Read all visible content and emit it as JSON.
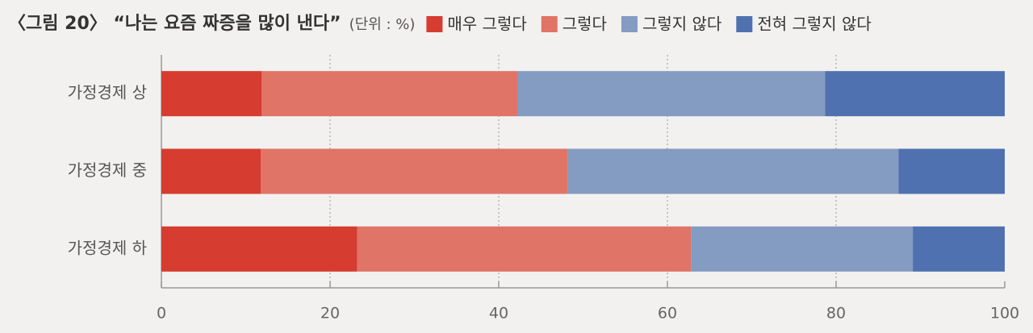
{
  "chart_data": {
    "type": "stacked-barh",
    "title": "〈그림 20〉 “나는 요즘 짜증을 많이 낸다”",
    "unit": "(단위 : %)",
    "categories": [
      "가정경제 상",
      "가정경제 중",
      "가정경제 하"
    ],
    "series": [
      {
        "name": "매우 그렇다",
        "color": "#d63c2f",
        "values": [
          11.9,
          11.8,
          23.2
        ]
      },
      {
        "name": "그렇다",
        "color": "#e07467",
        "values": [
          30.3,
          36.4,
          39.6
        ]
      },
      {
        "name": "그렇지 않다",
        "color": "#849bc2",
        "values": [
          36.5,
          39.2,
          26.3
        ]
      },
      {
        "name": "전혀 그렇지 않다",
        "color": "#4f71b0",
        "values": [
          21.3,
          12.6,
          10.9
        ]
      }
    ],
    "xlim": [
      0,
      100
    ],
    "xticks": [
      0,
      20,
      40,
      60,
      80,
      100
    ],
    "grid": true
  }
}
